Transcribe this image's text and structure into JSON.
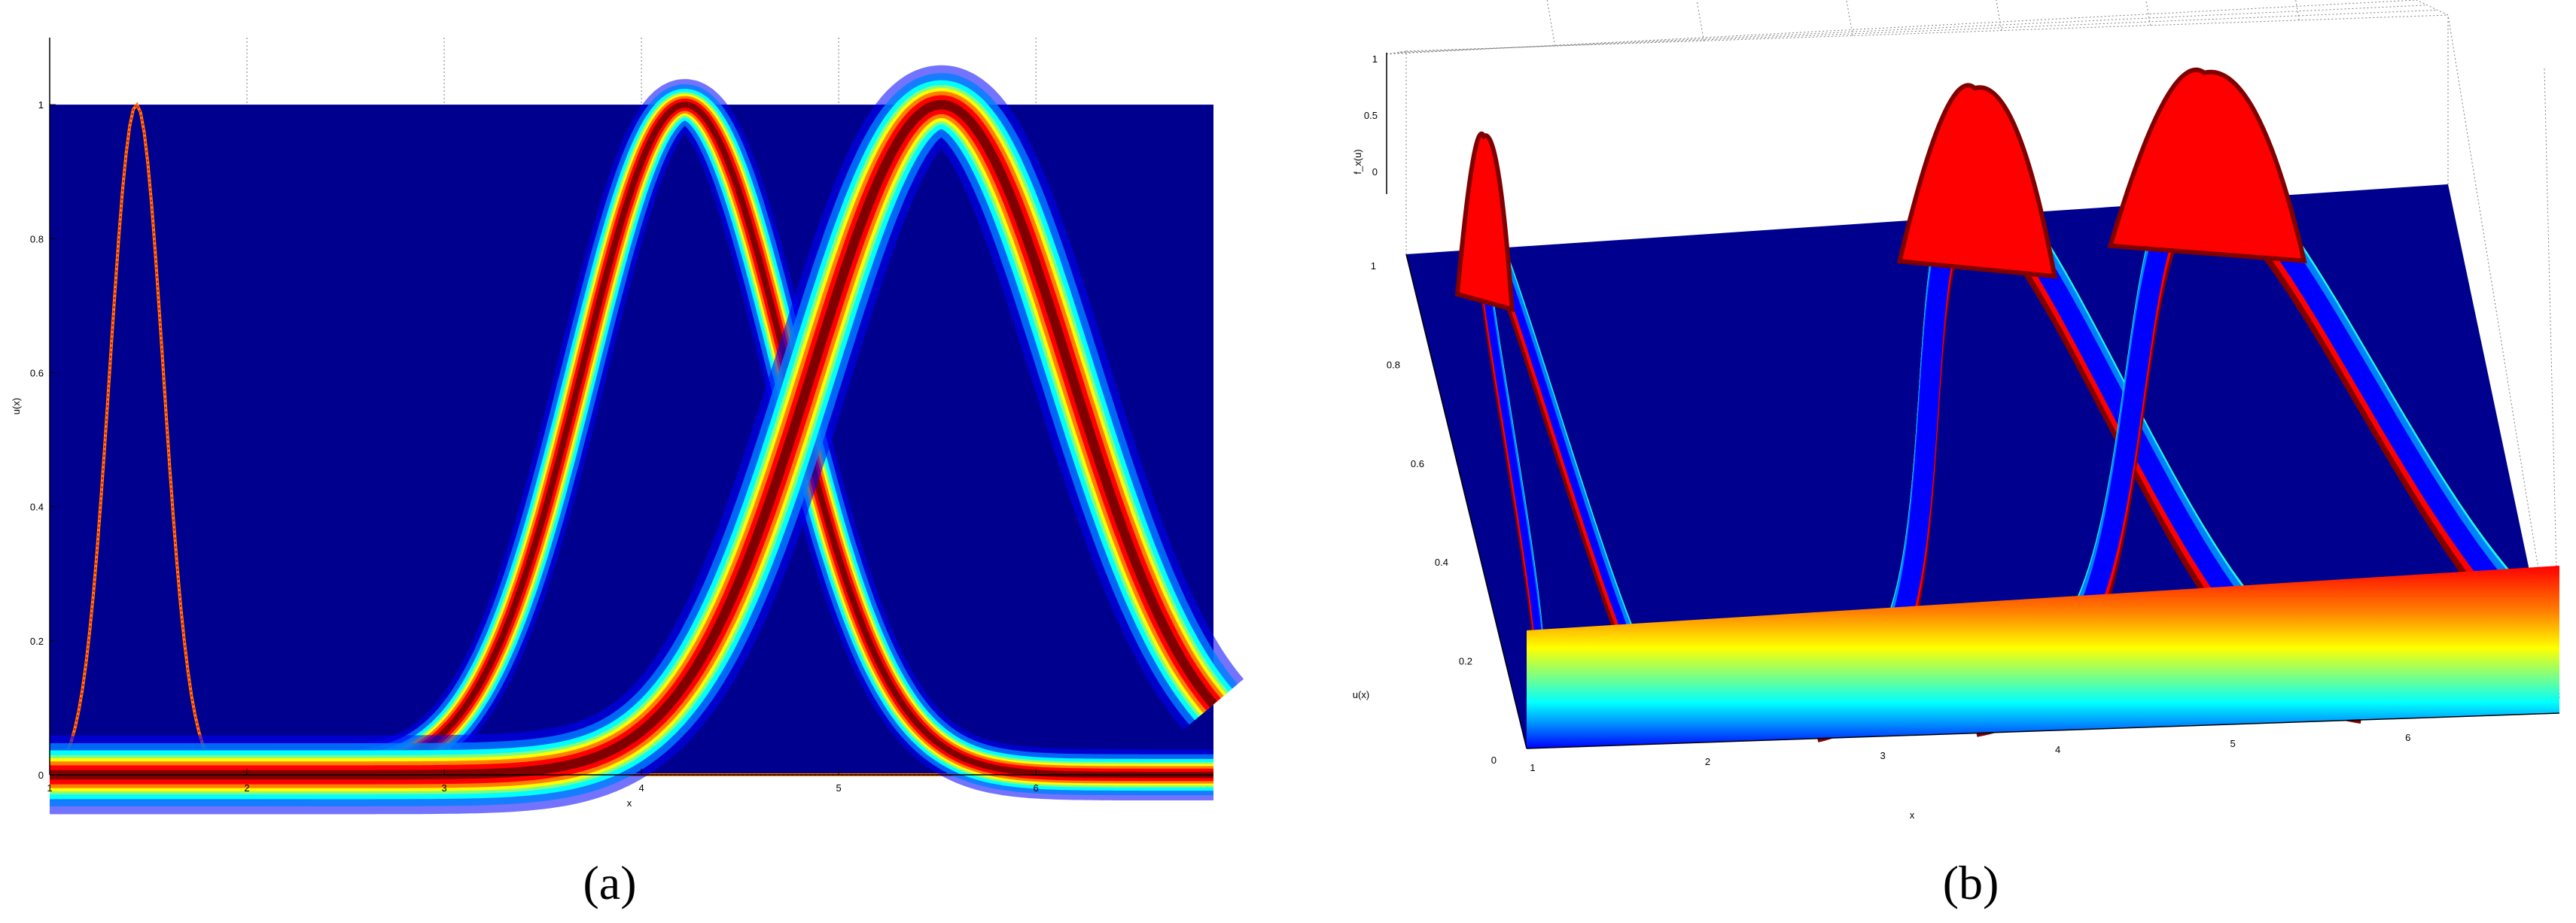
{
  "colors": {
    "background": "#00008f",
    "colormap": [
      "#00008f",
      "#0000ff",
      "#0080ff",
      "#00ffff",
      "#80ff80",
      "#ffff00",
      "#ff8000",
      "#ff0000",
      "#800000"
    ],
    "axis": "#000000",
    "grid": "#7f7f7f"
  },
  "chart_data": [
    {
      "panel_label": "(a)",
      "type": "heatmap",
      "xlabel": "x",
      "ylabel": "u(x)",
      "xlim": [
        1,
        6.9
      ],
      "ylim": [
        0,
        1.1
      ],
      "xticks": [
        "1",
        "2",
        "3",
        "4",
        "5",
        "6"
      ],
      "yticks": [
        "0",
        "0.2",
        "0.4",
        "0.6",
        "0.8",
        "1"
      ],
      "grid": "dotted vertical lines above the image",
      "image_extent": {
        "x": [
          1,
          6.9
        ],
        "y": [
          0,
          1
        ]
      },
      "membership_curves": [
        {
          "center": 1.44,
          "sigma": 0.135,
          "sharp": true
        },
        {
          "center": 4.22,
          "sigma": 0.52,
          "band": 0.13
        },
        {
          "center": 5.52,
          "sigma": 0.65,
          "band": 0.2
        }
      ]
    },
    {
      "panel_label": "(b)",
      "type": "surface",
      "xlabel": "x",
      "ylabel": "u(x)",
      "zlabel": "f_x(u)",
      "xticks": [
        "1",
        "2",
        "3",
        "4",
        "5",
        "6"
      ],
      "yticks": [
        "0",
        "0.2",
        "0.4",
        "0.6",
        "0.8",
        "1"
      ],
      "zticks": [
        "0",
        "0.5",
        "1"
      ],
      "grid": true,
      "membership_curves": [
        {
          "center": 1.44,
          "sigma": 0.135
        },
        {
          "center": 4.22,
          "sigma": 0.52
        },
        {
          "center": 5.52,
          "sigma": 0.65
        }
      ]
    }
  ]
}
